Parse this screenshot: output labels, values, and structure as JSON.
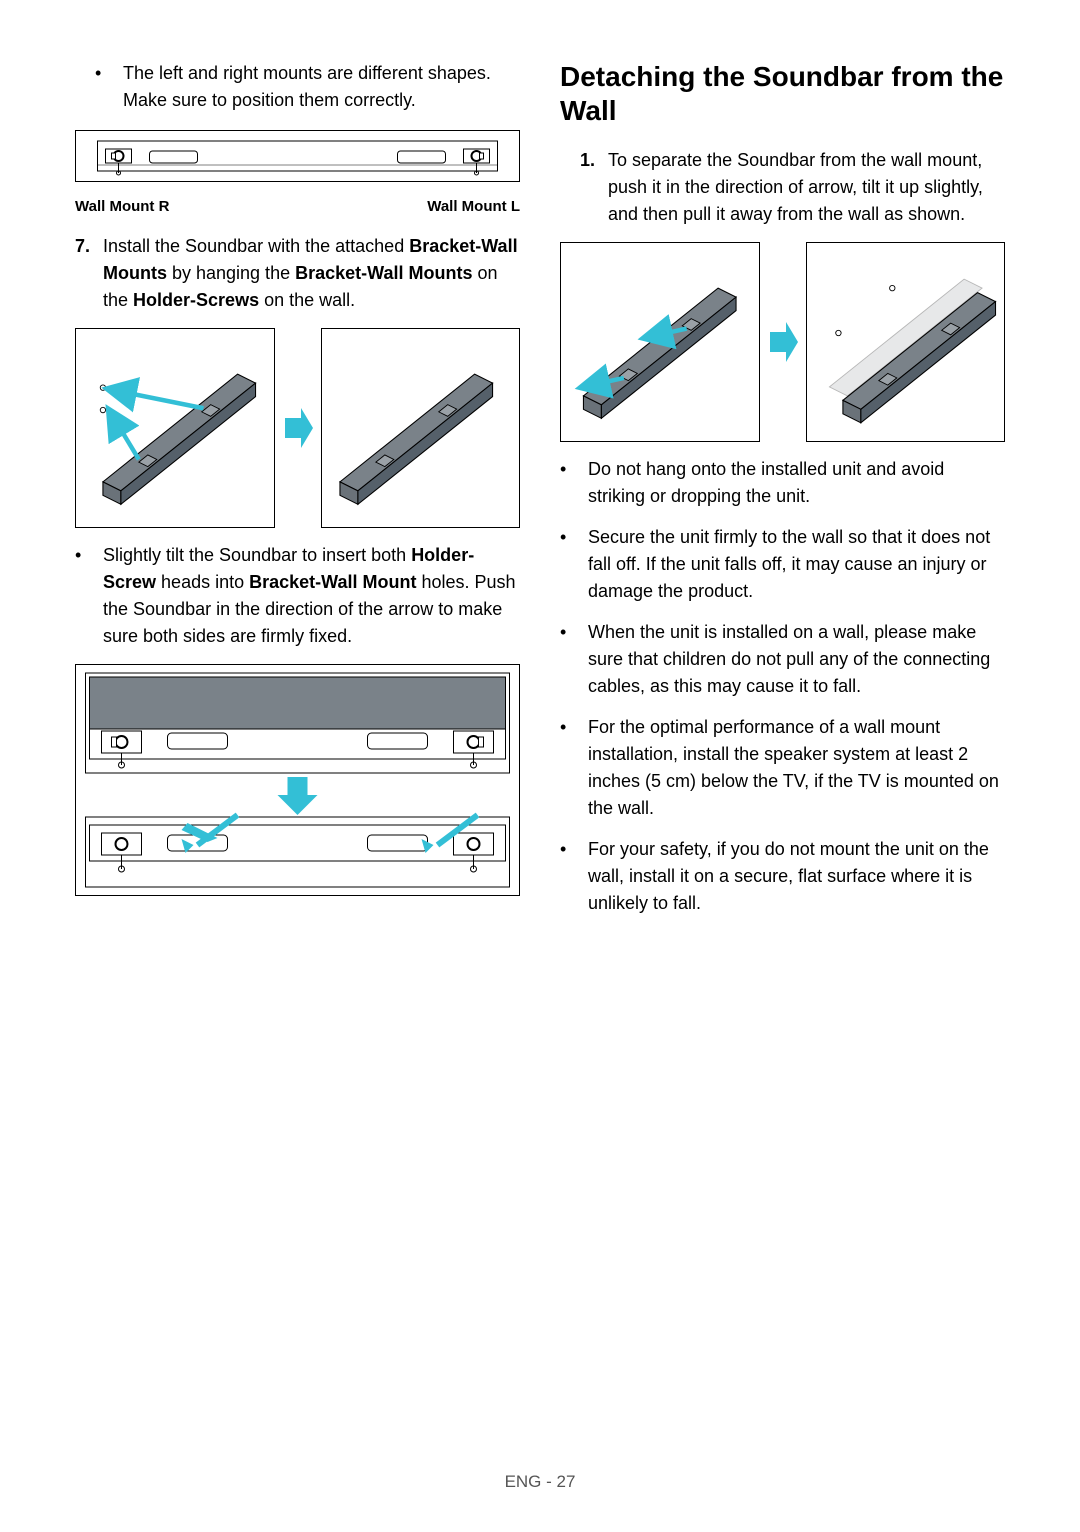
{
  "left": {
    "bullet_note": "The left and right mounts are different shapes. Make sure to position them correctly.",
    "mount_label_r": "Wall Mount R",
    "mount_label_l": "Wall Mount L",
    "step7_num": "7.",
    "step7_pre": "Install the Soundbar with the attached ",
    "step7_b1": "Bracket-Wall Mounts",
    "step7_mid1": " by hanging the ",
    "step7_b2": "Bracket-Wall Mounts",
    "step7_mid2": " on the ",
    "step7_b3": "Holder-Screws",
    "step7_post": " on the wall.",
    "tilt_pre": "Slightly tilt the Soundbar to insert both ",
    "tilt_b1": "Holder-Screw",
    "tilt_mid1": " heads into ",
    "tilt_b2": "Bracket-Wall Mount",
    "tilt_post": " holes. Push the Soundbar in the direction of the arrow to make sure both sides are firmly fixed."
  },
  "right": {
    "heading": "Detaching the Soundbar from the Wall",
    "step1_num": "1.",
    "step1_text": "To separate the Soundbar from the wall mount, push it in the direction of arrow, tilt it up slightly, and then pull it away from the wall as shown.",
    "bullets": [
      "Do not hang onto the installed unit and avoid striking or dropping the unit.",
      "Secure the unit firmly to the wall so that it does not fall off. If the unit falls off, it may cause an injury or damage the product.",
      "When the unit is installed on a wall, please make sure that children do not pull any of the connecting cables, as this may cause it to fall.",
      "For the optimal performance of a wall mount installation, install the speaker system at least 2 inches (5 cm) below the TV, if the TV is mounted on the wall.",
      "For your safety, if you do not mount the unit on the wall, install it on a secure, flat surface where it is unlikely to fall."
    ]
  },
  "footer": "ENG - 27",
  "colors": {
    "arrow": "#33bfd6",
    "bar_fill": "#7a8289",
    "bar_stroke": "#000000",
    "ghost_fill": "#d8dadc"
  }
}
